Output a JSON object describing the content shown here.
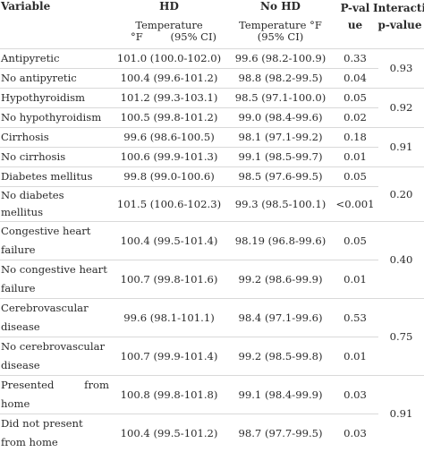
{
  "header": {
    "variable": "Variable",
    "hd": "HD",
    "no_hd": "No HD",
    "p_value": "P-value",
    "interaction": "Interaction p-value",
    "hd_sub_line1": "Temperature",
    "hd_sub_unit": "°F",
    "hd_sub_ci": "(95% CI)",
    "no_hd_sub_line1": "Temperature °F",
    "no_hd_sub_line2": "(95% CI)"
  },
  "rows": [
    {
      "variable": "Antipyretic",
      "hd": "101.0 (100.0-102.0)",
      "no_hd": "99.6 (98.2-100.9)",
      "p": "0.33"
    },
    {
      "variable": "No antipyretic",
      "hd": "100.4 (99.6-101.2)",
      "no_hd": "98.8 (98.2-99.5)",
      "p": "0.04"
    },
    {
      "variable": "Hypothyroidism",
      "hd": "101.2 (99.3-103.1)",
      "no_hd": "98.5 (97.1-100.0)",
      "p": "0.05"
    },
    {
      "variable": "No hypothyroidism",
      "hd": "100.5 (99.8-101.2)",
      "no_hd": "99.0 (98.4-99.6)",
      "p": "0.02"
    },
    {
      "variable": "Cirrhosis",
      "hd": "99.6 (98.6-100.5)",
      "no_hd": "98.1 (97.1-99.2)",
      "p": "0.18"
    },
    {
      "variable": "No cirrhosis",
      "hd": "100.6 (99.9-101.3)",
      "no_hd": "99.1 (98.5-99.7)",
      "p": "0.01"
    },
    {
      "variable": "Diabetes mellitus",
      "hd": "99.8 (99.0-100.6)",
      "no_hd": "98.5 (97.6-99.5)",
      "p": "0.05"
    },
    {
      "variable": "No diabetes mellitus",
      "hd": "101.5 (100.6-102.3)",
      "no_hd": "99.3 (98.5-100.1)",
      "p": "<0.001"
    },
    {
      "variable": "Congestive heart failure",
      "hd": "100.4 (99.5-101.4)",
      "no_hd": "98.19 (96.8-99.6)",
      "p": "0.05"
    },
    {
      "variable": "No congestive heart failure",
      "hd": "100.7 (99.8-101.6)",
      "no_hd": "99.2 (98.6-99.9)",
      "p": "0.01"
    },
    {
      "variable": "Cerebrovascular disease",
      "hd": "99.6 (98.1-101.1)",
      "no_hd": "98.4 (97.1-99.6)",
      "p": "0.53"
    },
    {
      "variable": "No cerebrovascular disease",
      "hd": "100.7 (99.9-101.4)",
      "no_hd": "99.2 (98.5-99.8)",
      "p": "0.01"
    },
    {
      "variable": "Presented from home",
      "hd": "100.8 (99.8-101.8)",
      "no_hd": "99.1 (98.4-99.9)",
      "p": "0.03"
    },
    {
      "variable": "Did not present from home",
      "hd": "100.4 (99.5-101.2)",
      "no_hd": "98.7 (97.7-99.5)",
      "p": "0.03"
    }
  ],
  "interactions": [
    "0.93",
    "0.92",
    "0.91",
    "0.20",
    "0.40",
    "0.75",
    "0.91"
  ]
}
